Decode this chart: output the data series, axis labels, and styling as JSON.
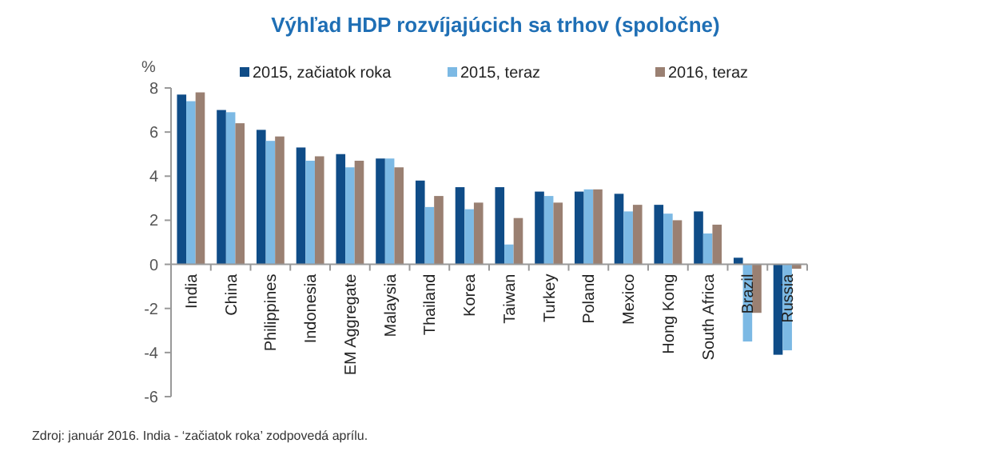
{
  "chart_data": {
    "type": "bar",
    "title": "Výhľad HDP rozvíjajúcich  sa trhov (spoločne)",
    "ylabel": "%",
    "categories": [
      "India",
      "China",
      "Philippines",
      "Indonesia",
      "EM Aggregate",
      "Malaysia",
      "Thailand",
      "Korea",
      "Taiwan",
      "Turkey",
      "Poland",
      "Mexico",
      "Hong Kong",
      "South Africa",
      "Brazil",
      "Russia"
    ],
    "series": [
      {
        "name": "2015, začiatok roka",
        "color": "#0f4c87",
        "values": [
          7.7,
          7.0,
          6.1,
          5.3,
          5.0,
          4.8,
          3.8,
          3.5,
          3.5,
          3.3,
          3.3,
          3.2,
          2.7,
          2.4,
          0.3,
          -4.1
        ]
      },
      {
        "name": "2015, teraz",
        "color": "#7cb9e4",
        "values": [
          7.4,
          6.9,
          5.6,
          4.7,
          4.4,
          4.8,
          2.6,
          2.5,
          0.9,
          3.1,
          3.4,
          2.4,
          2.3,
          1.4,
          -3.5,
          -3.9
        ]
      },
      {
        "name": "2016, teraz",
        "color": "#9a8072",
        "values": [
          7.8,
          6.4,
          5.8,
          4.9,
          4.7,
          4.4,
          3.1,
          2.8,
          2.1,
          2.8,
          3.4,
          2.7,
          2.0,
          1.8,
          -2.2,
          -0.2
        ]
      }
    ],
    "ylim": [
      -6,
      8
    ],
    "yticks": [
      -6,
      -4,
      -2,
      0,
      2,
      4,
      6,
      8
    ],
    "grid": false,
    "legend": "top",
    "annotations": [
      "Zdroj: január 2016. India - ‘začiatok roka’ zodpovedá aprílu."
    ]
  }
}
